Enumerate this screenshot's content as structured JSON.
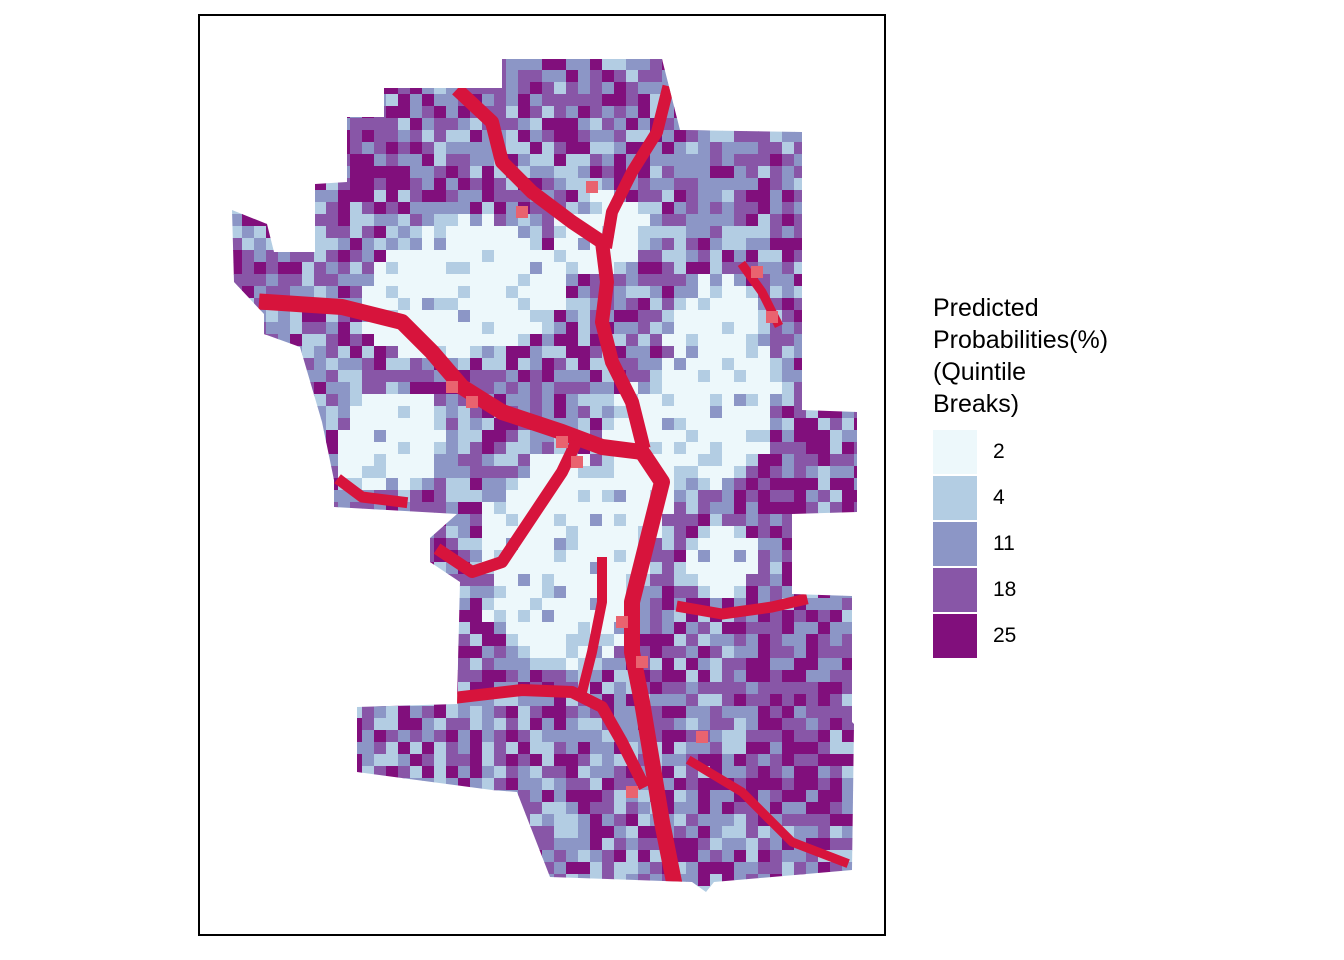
{
  "legend": {
    "title_lines": [
      "Predicted",
      "Probabilities(%)",
      "(Quintile",
      "Breaks)"
    ],
    "classes": [
      {
        "label": "2",
        "color": "#edf8fb"
      },
      {
        "label": "4",
        "color": "#b3cde3"
      },
      {
        "label": "11",
        "color": "#8c96c6"
      },
      {
        "label": "18",
        "color": "#8856a7"
      },
      {
        "label": "25",
        "color": "#810f7c"
      }
    ]
  },
  "overlay_color": "#d7143c",
  "overlay_light_color": "#e9636f"
}
